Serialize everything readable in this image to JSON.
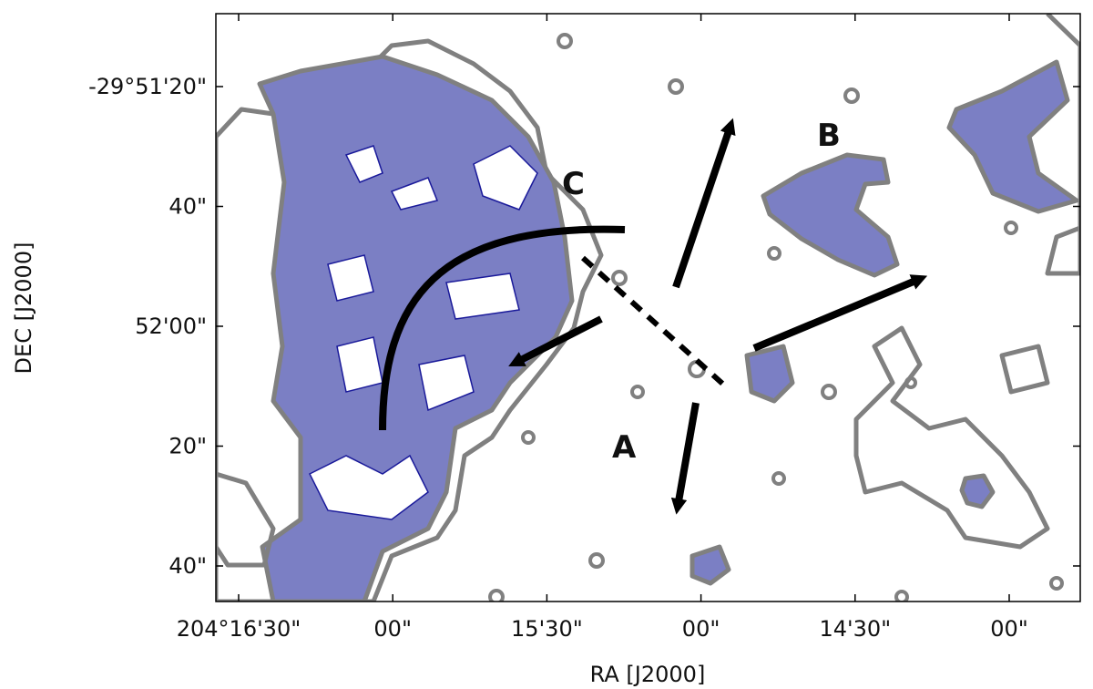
{
  "axes": {
    "x_label": "RA [J2000]",
    "y_label": "DEC [J2000]",
    "x_ticks": [
      "204°16'30\"",
      "00\"",
      "15'30\"",
      "00\"",
      "14'30\"",
      "00\""
    ],
    "y_ticks": [
      "-29°51'20\"",
      "40\"",
      "52'00\"",
      "20\"",
      "40\""
    ]
  },
  "annotations": [
    "A",
    "B",
    "C"
  ]
}
